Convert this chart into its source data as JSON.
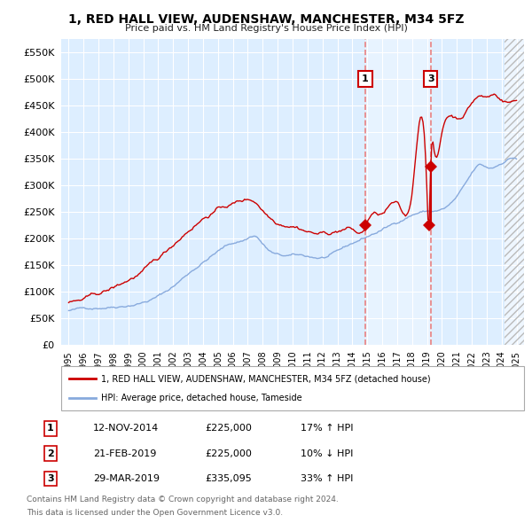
{
  "title": "1, RED HALL VIEW, AUDENSHAW, MANCHESTER, M34 5FZ",
  "subtitle": "Price paid vs. HM Land Registry's House Price Index (HPI)",
  "legend_label_red": "1, RED HALL VIEW, AUDENSHAW, MANCHESTER, M34 5FZ (detached house)",
  "legend_label_blue": "HPI: Average price, detached house, Tameside",
  "footer1": "Contains HM Land Registry data © Crown copyright and database right 2024.",
  "footer2": "This data is licensed under the Open Government Licence v3.0.",
  "sales": [
    {
      "num": "1",
      "date": "12-NOV-2014",
      "price": "£225,000",
      "change": "17% ↑ HPI",
      "year": 2014.87
    },
    {
      "num": "2",
      "date": "21-FEB-2019",
      "price": "£225,000",
      "change": "10% ↓ HPI",
      "year": 2019.13
    },
    {
      "num": "3",
      "date": "29-MAR-2019",
      "price": "£335,095",
      "change": "33% ↑ HPI",
      "year": 2019.25
    }
  ],
  "sale1_year": 2014.87,
  "sale1_price": 225000,
  "sale2_year": 2019.13,
  "sale2_price": 225000,
  "sale3_year": 2019.25,
  "sale3_price": 335095,
  "vline_color": "#e88080",
  "red_color": "#cc0000",
  "blue_color": "#88aadd",
  "background_color": "#ddeeff",
  "shade_color": "#cce0ff",
  "ylim": [
    0,
    575000
  ],
  "xlim_start": 1994.5,
  "xlim_end": 2025.5,
  "hatch_start": 2024.17
}
